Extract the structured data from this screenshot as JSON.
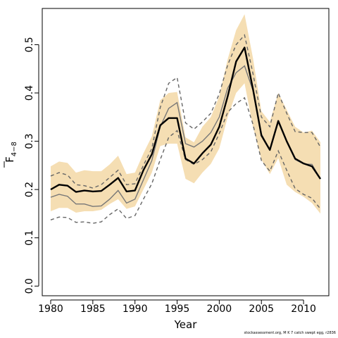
{
  "chart_data": {
    "type": "line",
    "xlabel": "Year",
    "ylabel_main": "F",
    "ylabel_sub": "4−8",
    "xlim": [
      1979,
      2013
    ],
    "ylim": [
      -0.02,
      0.575
    ],
    "x_ticks": [
      1980,
      1985,
      1990,
      1995,
      2000,
      2005,
      2010
    ],
    "y_ticks": [
      0.0,
      0.1,
      0.2,
      0.3,
      0.4,
      0.5
    ],
    "y_tick_labels": [
      "0.0",
      "0.1",
      "0.2",
      "0.3",
      "0.4",
      "0.5"
    ],
    "grid": false,
    "colors": {
      "band": "#f5deb3",
      "main": "#000000",
      "median": "#777777",
      "ci": "#666666"
    },
    "x": [
      1980,
      1981,
      1982,
      1983,
      1984,
      1985,
      1986,
      1987,
      1988,
      1989,
      1990,
      1991,
      1992,
      1993,
      1994,
      1995,
      1996,
      1997,
      1998,
      1999,
      2000,
      2001,
      2002,
      2003,
      2004,
      2005,
      2006,
      2007,
      2008,
      2009,
      2010,
      2011,
      2012
    ],
    "series": [
      {
        "style": "band-lower",
        "values": [
          0.155,
          0.162,
          0.162,
          0.152,
          0.155,
          0.155,
          0.158,
          0.17,
          0.18,
          0.16,
          0.165,
          0.2,
          0.235,
          0.29,
          0.295,
          0.295,
          0.222,
          0.213,
          0.235,
          0.253,
          0.285,
          0.35,
          0.4,
          0.42,
          0.33,
          0.262,
          0.232,
          0.265,
          0.21,
          0.195,
          0.185,
          0.172,
          0.15
        ]
      },
      {
        "style": "band-upper",
        "values": [
          0.248,
          0.258,
          0.255,
          0.235,
          0.24,
          0.238,
          0.238,
          0.252,
          0.27,
          0.232,
          0.235,
          0.275,
          0.31,
          0.385,
          0.4,
          0.402,
          0.308,
          0.298,
          0.33,
          0.35,
          0.393,
          0.47,
          0.53,
          0.563,
          0.472,
          0.362,
          0.34,
          0.4,
          0.365,
          0.33,
          0.318,
          0.322,
          0.298
        ]
      },
      {
        "style": "ci-dashed",
        "values": [
          0.137,
          0.143,
          0.142,
          0.132,
          0.133,
          0.13,
          0.133,
          0.148,
          0.16,
          0.14,
          0.146,
          0.18,
          0.212,
          0.262,
          0.308,
          0.322,
          0.262,
          0.252,
          0.262,
          0.278,
          0.316,
          0.36,
          0.378,
          0.39,
          0.335,
          0.26,
          0.238,
          0.28,
          0.24,
          0.202,
          0.19,
          0.182,
          0.16
        ]
      },
      {
        "style": "ci-dashed",
        "values": [
          0.228,
          0.235,
          0.23,
          0.21,
          0.208,
          0.203,
          0.21,
          0.225,
          0.24,
          0.21,
          0.212,
          0.25,
          0.285,
          0.37,
          0.42,
          0.432,
          0.338,
          0.325,
          0.34,
          0.358,
          0.398,
          0.458,
          0.5,
          0.52,
          0.44,
          0.35,
          0.33,
          0.4,
          0.358,
          0.32,
          0.318,
          0.318,
          0.288
        ]
      },
      {
        "style": "median",
        "values": [
          0.184,
          0.19,
          0.186,
          0.17,
          0.17,
          0.165,
          0.166,
          0.18,
          0.198,
          0.172,
          0.18,
          0.22,
          0.26,
          0.33,
          0.368,
          0.38,
          0.295,
          0.288,
          0.3,
          0.318,
          0.35,
          0.41,
          0.442,
          0.456,
          0.405,
          0.315,
          0.282,
          0.34,
          0.3,
          0.262,
          0.253,
          0.252,
          0.222
        ]
      },
      {
        "style": "main",
        "values": [
          0.2,
          0.21,
          0.208,
          0.195,
          0.198,
          0.196,
          0.197,
          0.21,
          0.224,
          0.196,
          0.198,
          0.24,
          0.273,
          0.333,
          0.348,
          0.348,
          0.264,
          0.254,
          0.275,
          0.293,
          0.33,
          0.393,
          0.465,
          0.494,
          0.408,
          0.312,
          0.282,
          0.342,
          0.3,
          0.264,
          0.254,
          0.248,
          0.222
        ]
      }
    ]
  },
  "footer_text": "stockassessment.org, M K 7 catch swept egg, r2836"
}
